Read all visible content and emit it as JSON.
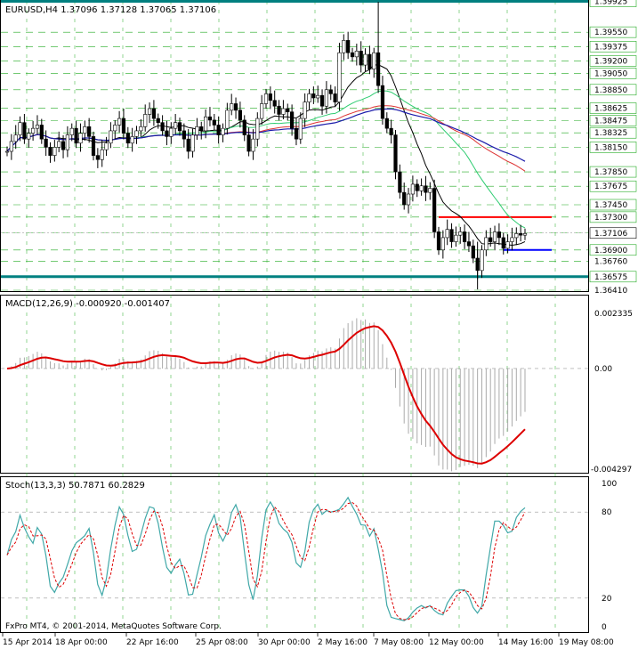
{
  "chart_data": [
    {
      "type": "candlestick",
      "title": "EURUSD,H4  1.37096 1.37128 1.37065 1.37106",
      "ylim": [
        1.3641,
        1.3992
      ],
      "price_labels": [
        "1.39925",
        "1.39550",
        "1.39375",
        "1.39200",
        "1.39050",
        "1.38850",
        "1.38625",
        "1.38475",
        "1.38325",
        "1.38150",
        "1.37850",
        "1.37675",
        "1.37450",
        "1.37300",
        "1.37106",
        "1.36900",
        "1.36760",
        "1.36575",
        "1.36410"
      ],
      "horizontal_levels": [
        {
          "value": 1.39925,
          "color": "#008080"
        },
        {
          "value": 1.36575,
          "color": "#008080"
        },
        {
          "value": 1.373,
          "color": "#ff0000"
        },
        {
          "value": 1.369,
          "color": "#0000ff"
        }
      ],
      "current_price": "1.37106",
      "close": [
        1.381,
        1.3822,
        1.383,
        1.3845,
        1.3825,
        1.3832,
        1.3838,
        1.3842,
        1.3825,
        1.3815,
        1.3805,
        1.3815,
        1.3822,
        1.3812,
        1.383,
        1.3838,
        1.382,
        1.3832,
        1.384,
        1.3828,
        1.3805,
        1.38,
        1.3812,
        1.382,
        1.3835,
        1.3842,
        1.385,
        1.3832,
        1.382,
        1.3828,
        1.3835,
        1.384,
        1.3855,
        1.3862,
        1.385,
        1.3845,
        1.3835,
        1.3828,
        1.3838,
        1.3845,
        1.3835,
        1.3825,
        1.381,
        1.383,
        1.384,
        1.3835,
        1.3852,
        1.3848,
        1.3842,
        1.383,
        1.3838,
        1.386,
        1.3868,
        1.386,
        1.3848,
        1.383,
        1.381,
        1.3825,
        1.385,
        1.3868,
        1.388,
        1.3872,
        1.3865,
        1.3855,
        1.3862,
        1.3858,
        1.3838,
        1.3825,
        1.385,
        1.387,
        1.388,
        1.3875,
        1.3878,
        1.3865,
        1.3885,
        1.388,
        1.387,
        1.393,
        1.3945,
        1.393,
        1.3925,
        1.3932,
        1.3915,
        1.3928,
        1.391,
        1.393,
        1.389,
        1.385,
        1.3838,
        1.383,
        1.3785,
        1.376,
        1.3745,
        1.3758,
        1.377,
        1.3762,
        1.3768,
        1.376,
        1.3765,
        1.3712,
        1.369,
        1.3705,
        1.3715,
        1.37,
        1.3708,
        1.3712,
        1.37,
        1.3695,
        1.368,
        1.3665,
        1.369,
        1.3705,
        1.37,
        1.3712,
        1.3705,
        1.3692,
        1.37,
        1.3705,
        1.371,
        1.3708,
        1.371
      ]
    },
    {
      "type": "line",
      "title": "MACD(12,26,9) -0.000920 -0.001407",
      "ylim": [
        -0.004297,
        0.002335
      ],
      "tick_labels": [
        "0.002335",
        "0.00",
        "-0.004297"
      ]
    },
    {
      "type": "line",
      "title": "Stoch(13,3,3) 50.7871 60.2829",
      "ylim": [
        0,
        100
      ],
      "tick_labels": [
        "100",
        "80",
        "20",
        "0"
      ],
      "x_labels": [
        "15 Apr 2014",
        "18 Apr 00:00",
        "22 Apr 16:00",
        "25 Apr 08:00",
        "30 Apr 00:00",
        "2 May 16:00",
        "7 May 08:00",
        "12 May 00:00",
        "14 May 16:00",
        "19 May 08:00"
      ]
    }
  ],
  "footer": "FxPro MT4, © 2001-2014, MetaQuotes Software Corp.",
  "colors": {
    "bull": "#008000",
    "bear": "#008000",
    "macd_signal": "#dd0000",
    "stoch_main": "#40a8a8",
    "stoch_signal": "#dd0000",
    "ma_fast": "#000000",
    "ma_mid": "#2ecc71",
    "ma_slow": "#dd3333",
    "ma_blue": "#1a1aaa"
  }
}
